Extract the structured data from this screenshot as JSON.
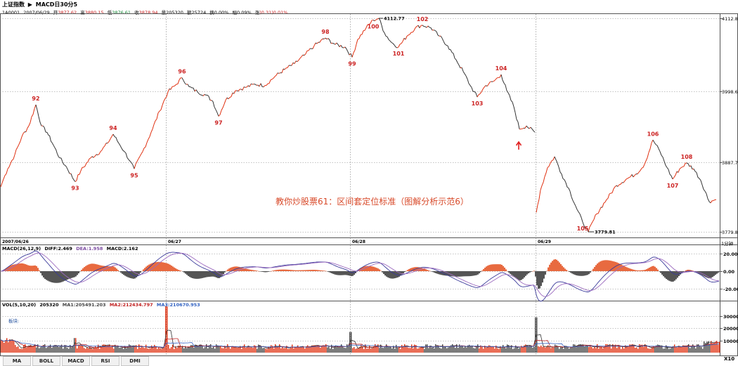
{
  "header": {
    "index_name": "上证指数",
    "title_info": "MACD日30分5",
    "code": "1A0001",
    "date": "2007/06/29",
    "open_label": "开",
    "open": "3877.62",
    "high_label": "高",
    "high": "3880.15",
    "low_label": "低",
    "low": "3876.61",
    "close_label": "收",
    "close": "3878.94",
    "volume_label": "量",
    "volume": "205320",
    "amount_label": "额",
    "amount": "25724",
    "turnover_label": "换",
    "turnover": "0.00%",
    "amplitude_label": "幅",
    "amplitude": "0.09%",
    "change_label": "涨",
    "change": "(0.31)0.01%"
  },
  "main_chart": {
    "y_ticks": [
      "4112.8",
      "3998.6",
      "3887.7",
      "3779.8"
    ],
    "date_labels": [
      "2007/06/26",
      "06/27",
      "06/28",
      "06/29"
    ],
    "period_label": "1分钟",
    "caption": "教你炒股票61：区间套定位标准（图解分析示范6）",
    "high_label": "4112.77",
    "low_label": "3779.81"
  },
  "macd": {
    "title": "MACD(26,12,9)",
    "diff_label": "DIFF:",
    "diff": "2.469",
    "dea_label": "DEA:",
    "dea": "1.958",
    "macd_label": "MACD:",
    "macd": "2.162",
    "y_ticks": [
      "20.00",
      "0.00",
      "-20.00"
    ]
  },
  "vol": {
    "title": "VOL(5,10,20)",
    "value": "205320",
    "ma1_label": "MA1:",
    "ma1": "205491.203",
    "ma2_label": "MA2:",
    "ma2": "212434.797",
    "ma3_label": "MA3:",
    "ma3": "210670.953",
    "note": "板块:",
    "y_ticks": [
      "300000",
      "200000",
      "100000"
    ],
    "unit": "X10"
  },
  "bottom_tabs": [
    "MA",
    "BOLL",
    "MACD",
    "RSI",
    "DMI"
  ],
  "colors": {
    "up": "#e03010",
    "down": "#333333",
    "label_red": "#cc2222",
    "diff_line": "#3a3a9a",
    "dea_line": "#9c6bbf",
    "grid": "#888888",
    "ma1": "#333333",
    "ma2": "#c02020",
    "ma3": "#3060c0"
  },
  "chart_data": {
    "type": "line",
    "title": "",
    "xlabel": "",
    "ylabel": "",
    "ylim": [
      3779.8,
      4112.8
    ],
    "x_day_labels": [
      "2007/06/26",
      "06/27",
      "06/28",
      "06/29"
    ],
    "points": [
      {
        "x": 0,
        "y": 3850
      },
      {
        "x": 4,
        "y": 3862
      },
      {
        "x": 10,
        "y": 3878
      },
      {
        "x": 20,
        "y": 3900
      },
      {
        "x": 30,
        "y": 3928
      },
      {
        "x": 40,
        "y": 3945
      },
      {
        "x": 50,
        "y": 3978,
        "label": "92"
      },
      {
        "x": 58,
        "y": 3945
      },
      {
        "x": 66,
        "y": 3935
      },
      {
        "x": 75,
        "y": 3915
      },
      {
        "x": 84,
        "y": 3895
      },
      {
        "x": 94,
        "y": 3880
      },
      {
        "x": 106,
        "y": 3858,
        "label": "93"
      },
      {
        "x": 114,
        "y": 3875
      },
      {
        "x": 128,
        "y": 3895
      },
      {
        "x": 142,
        "y": 3905
      },
      {
        "x": 152,
        "y": 3918
      },
      {
        "x": 160,
        "y": 3932,
        "label": "94"
      },
      {
        "x": 168,
        "y": 3918
      },
      {
        "x": 176,
        "y": 3905
      },
      {
        "x": 184,
        "y": 3890
      },
      {
        "x": 190,
        "y": 3878,
        "label": "95"
      },
      {
        "x": 202,
        "y": 3905
      },
      {
        "x": 214,
        "y": 3935
      },
      {
        "x": 226,
        "y": 3968
      },
      {
        "x": 238,
        "y": 3998
      },
      {
        "x": 250,
        "y": 4010
      },
      {
        "x": 258,
        "y": 4020,
        "label": "96"
      },
      {
        "x": 268,
        "y": 4006
      },
      {
        "x": 280,
        "y": 3998
      },
      {
        "x": 292,
        "y": 3993
      },
      {
        "x": 302,
        "y": 3983
      },
      {
        "x": 310,
        "y": 3960,
        "label": "97"
      },
      {
        "x": 320,
        "y": 3985
      },
      {
        "x": 334,
        "y": 4000
      },
      {
        "x": 348,
        "y": 4005
      },
      {
        "x": 362,
        "y": 4010
      },
      {
        "x": 376,
        "y": 4008
      },
      {
        "x": 390,
        "y": 4022
      },
      {
        "x": 404,
        "y": 4033
      },
      {
        "x": 418,
        "y": 4042
      },
      {
        "x": 432,
        "y": 4055
      },
      {
        "x": 446,
        "y": 4070
      },
      {
        "x": 462,
        "y": 4082,
        "label": "98"
      },
      {
        "x": 476,
        "y": 4072
      },
      {
        "x": 490,
        "y": 4068
      },
      {
        "x": 500,
        "y": 4052,
        "label": "99"
      },
      {
        "x": 508,
        "y": 4080
      },
      {
        "x": 520,
        "y": 4098
      },
      {
        "x": 530,
        "y": 4110,
        "label": "100"
      },
      {
        "x": 538,
        "y": 4112.77
      },
      {
        "x": 546,
        "y": 4090
      },
      {
        "x": 556,
        "y": 4075
      },
      {
        "x": 566,
        "y": 4068,
        "label": "101"
      },
      {
        "x": 578,
        "y": 4085
      },
      {
        "x": 590,
        "y": 4098
      },
      {
        "x": 600,
        "y": 4102,
        "label": "102"
      },
      {
        "x": 612,
        "y": 4098
      },
      {
        "x": 624,
        "y": 4085
      },
      {
        "x": 636,
        "y": 4070
      },
      {
        "x": 648,
        "y": 4048
      },
      {
        "x": 658,
        "y": 4030
      },
      {
        "x": 668,
        "y": 4008
      },
      {
        "x": 678,
        "y": 3990,
        "label": "103"
      },
      {
        "x": 690,
        "y": 4008
      },
      {
        "x": 702,
        "y": 4015
      },
      {
        "x": 712,
        "y": 4025,
        "label": "104"
      },
      {
        "x": 720,
        "y": 4000
      },
      {
        "x": 730,
        "y": 3975
      },
      {
        "x": 738,
        "y": 3940
      },
      {
        "x": 748,
        "y": 3945
      },
      {
        "x": 760,
        "y": 3935
      },
      {
        "x": 762,
        "y": 3810
      },
      {
        "x": 768,
        "y": 3845
      },
      {
        "x": 778,
        "y": 3880
      },
      {
        "x": 788,
        "y": 3897
      },
      {
        "x": 798,
        "y": 3870
      },
      {
        "x": 808,
        "y": 3848
      },
      {
        "x": 818,
        "y": 3820
      },
      {
        "x": 828,
        "y": 3795,
        "label": "105"
      },
      {
        "x": 836,
        "y": 3779.81
      },
      {
        "x": 848,
        "y": 3808
      },
      {
        "x": 862,
        "y": 3830
      },
      {
        "x": 876,
        "y": 3852
      },
      {
        "x": 890,
        "y": 3862
      },
      {
        "x": 904,
        "y": 3870
      },
      {
        "x": 916,
        "y": 3885
      },
      {
        "x": 928,
        "y": 3923,
        "label": "106"
      },
      {
        "x": 938,
        "y": 3905
      },
      {
        "x": 948,
        "y": 3880
      },
      {
        "x": 956,
        "y": 3862,
        "label": "107"
      },
      {
        "x": 966,
        "y": 3878
      },
      {
        "x": 976,
        "y": 3887,
        "label": "108"
      },
      {
        "x": 986,
        "y": 3878
      },
      {
        "x": 996,
        "y": 3860
      },
      {
        "x": 1008,
        "y": 3827
      },
      {
        "x": 1018,
        "y": 3830
      }
    ]
  }
}
